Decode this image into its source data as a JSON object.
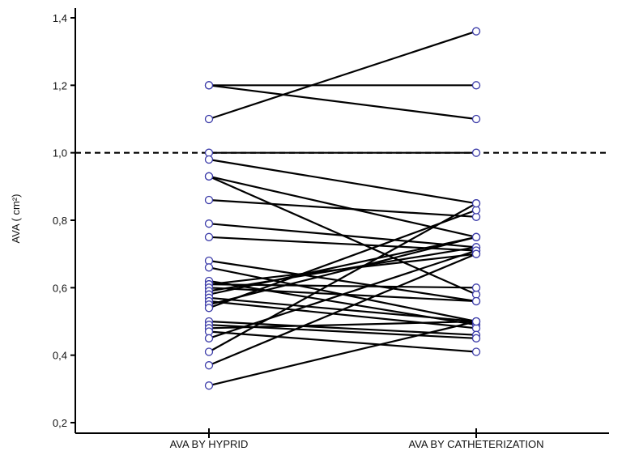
{
  "chart_data": {
    "type": "line",
    "title": "",
    "xlabel": "",
    "ylabel": "AVA ( cm²)",
    "categories": [
      "AVA BY HYPRID",
      "AVA BY CATHETERIZATION"
    ],
    "ylim": [
      0.2,
      1.4
    ],
    "yticks": [
      0.2,
      0.4,
      0.6,
      0.8,
      1.0,
      1.2,
      1.4
    ],
    "ytick_labels": [
      "0,2",
      "0,4",
      "0,6",
      "0,8",
      "1,0",
      "1,2",
      "1,4"
    ],
    "reference_line": {
      "y": 1.0,
      "style": "dashed"
    },
    "pairs": [
      [
        1.2,
        1.2
      ],
      [
        1.2,
        1.1
      ],
      [
        1.1,
        1.36
      ],
      [
        1.0,
        1.0
      ],
      [
        0.98,
        0.85
      ],
      [
        0.93,
        0.75
      ],
      [
        0.93,
        0.58
      ],
      [
        0.86,
        0.81
      ],
      [
        0.79,
        0.72
      ],
      [
        0.75,
        0.71
      ],
      [
        0.68,
        0.56
      ],
      [
        0.66,
        0.5
      ],
      [
        0.62,
        0.49
      ],
      [
        0.61,
        0.6
      ],
      [
        0.61,
        0.7
      ],
      [
        0.6,
        0.56
      ],
      [
        0.59,
        0.72
      ],
      [
        0.58,
        0.75
      ],
      [
        0.57,
        0.5
      ],
      [
        0.56,
        0.48
      ],
      [
        0.55,
        0.75
      ],
      [
        0.54,
        0.83
      ],
      [
        0.5,
        0.46
      ],
      [
        0.49,
        0.45
      ],
      [
        0.48,
        0.5
      ],
      [
        0.47,
        0.41
      ],
      [
        0.45,
        0.71
      ],
      [
        0.41,
        0.85
      ],
      [
        0.37,
        0.7
      ],
      [
        0.31,
        0.5
      ]
    ],
    "colors": {
      "line": "#000000",
      "marker_stroke": "#3a3aa8",
      "marker_fill": "#ffffff"
    },
    "grid": false
  }
}
